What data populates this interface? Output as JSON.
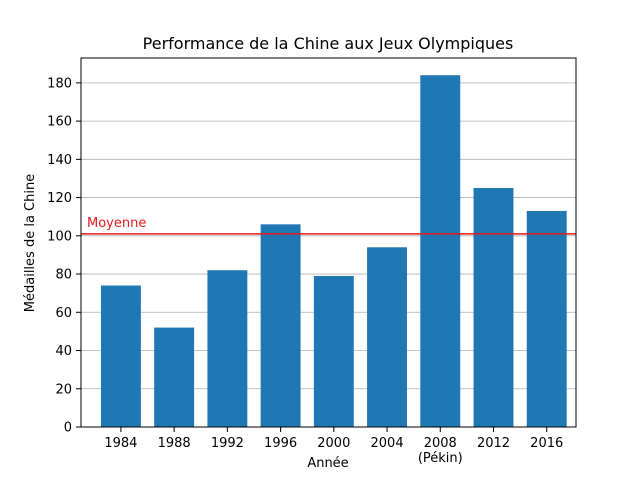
{
  "chart_data": {
    "type": "bar",
    "title": "Performance de la Chine aux Jeux Olympiques",
    "xlabel": "Année",
    "ylabel": "Médailles de la Chine",
    "categories": [
      "1984",
      "1988",
      "1992",
      "1996",
      "2000",
      "2004",
      "2008\n(Pékin)",
      "2012",
      "2016"
    ],
    "values": [
      74,
      52,
      82,
      106,
      79,
      94,
      184,
      125,
      113
    ],
    "ylim": [
      0,
      193
    ],
    "yticks": [
      0,
      20,
      40,
      60,
      80,
      100,
      120,
      140,
      160,
      180
    ],
    "grid": "horizontal",
    "bar_color": "#1f77b4",
    "reference_line": {
      "label": "Moyenne",
      "value": 101,
      "color": "#e31a1c"
    }
  }
}
